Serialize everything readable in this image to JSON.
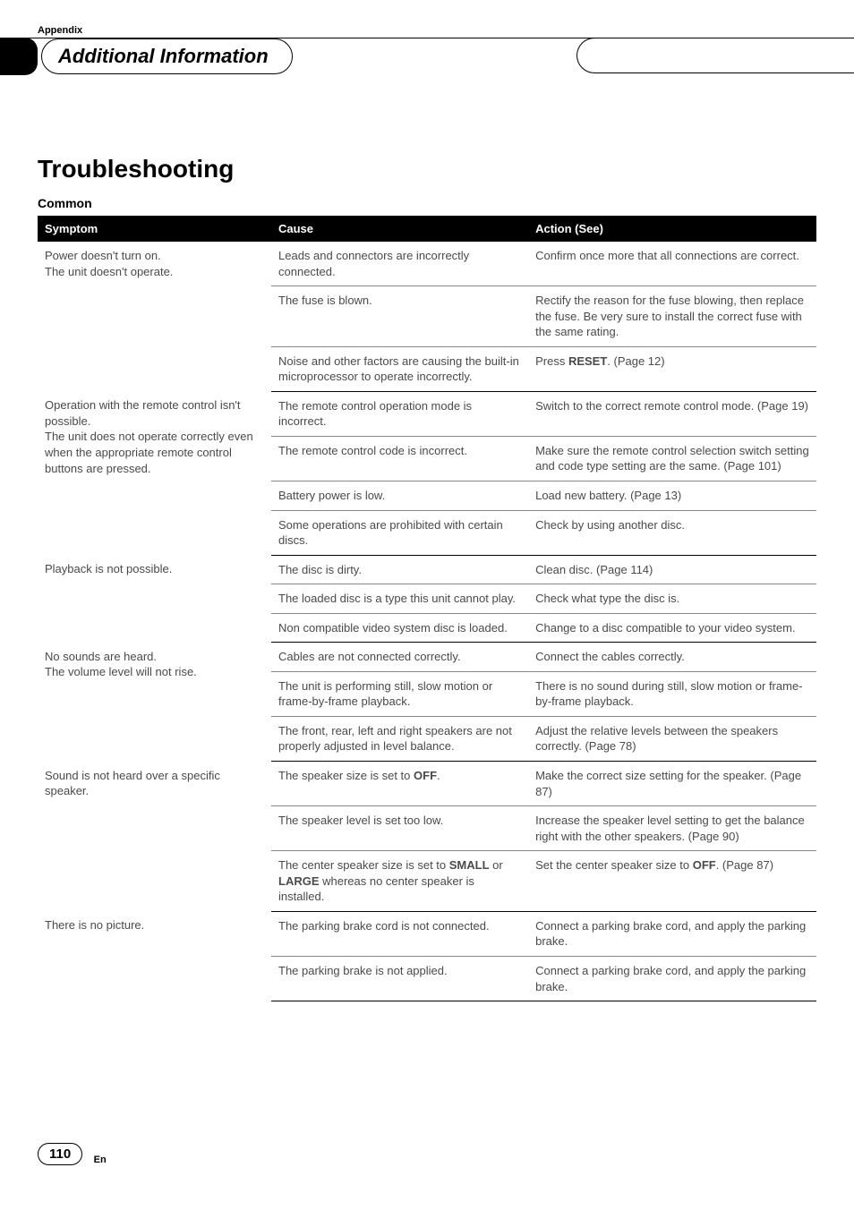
{
  "header": {
    "appendix": "Appendix",
    "section_title": "Additional Information"
  },
  "main": {
    "heading": "Troubleshooting",
    "subheading": "Common",
    "columns": {
      "c1": "Symptom",
      "c2": "Cause",
      "c3": "Action (See)"
    },
    "groups": [
      {
        "symptom": "Power doesn't turn on.\nThe unit doesn't operate.",
        "rows": [
          {
            "cause": "Leads and connectors are incorrectly connected.",
            "action": "Confirm once more that all connections are correct."
          },
          {
            "cause": "The fuse is blown.",
            "action": "Rectify the reason for the fuse blowing, then replace the fuse. Be very sure to install the correct fuse with the same rating."
          },
          {
            "cause": "Noise and other factors are causing the built-in microprocessor to operate incorrectly.",
            "action_pre": "Press ",
            "action_bold": "RESET",
            "action_post": ". (Page 12)"
          }
        ]
      },
      {
        "symptom": "Operation with the remote control isn't possible.\nThe unit does not operate correctly even when the appropriate remote control buttons are pressed.",
        "rows": [
          {
            "cause": "The remote control operation mode is incorrect.",
            "action": "Switch to the correct remote control mode. (Page 19)"
          },
          {
            "cause": "The remote control code is incorrect.",
            "action": "Make sure the remote control selection switch setting and code type setting are the same. (Page 101)"
          },
          {
            "cause": "Battery power is low.",
            "action": "Load new battery. (Page 13)"
          },
          {
            "cause": "Some operations are prohibited with certain discs.",
            "action": "Check by using another disc."
          }
        ]
      },
      {
        "symptom": "Playback is not possible.",
        "rows": [
          {
            "cause": "The disc is dirty.",
            "action": "Clean disc. (Page 114)"
          },
          {
            "cause": "The loaded disc is a type this unit cannot play.",
            "action": "Check what type the disc is."
          },
          {
            "cause": "Non compatible video system disc is loaded.",
            "action": "Change to a disc compatible to your video system."
          }
        ]
      },
      {
        "symptom": "No sounds are heard.\nThe volume level will not rise.",
        "rows": [
          {
            "cause": "Cables are not connected correctly.",
            "action": "Connect the cables correctly."
          },
          {
            "cause": "The unit is performing still, slow motion or frame-by-frame playback.",
            "action": "There is no sound during still, slow motion or frame-by-frame playback."
          },
          {
            "cause": "The front, rear, left and right speakers are not properly adjusted in level balance.",
            "action": "Adjust the relative levels between the speakers correctly. (Page 78)"
          }
        ]
      },
      {
        "symptom": "Sound is not heard over a specific speaker.",
        "rows": [
          {
            "cause_pre": "The speaker size is set to ",
            "cause_bold": "OFF",
            "cause_post": ".",
            "action": "Make the correct size setting for the speaker. (Page 87)"
          },
          {
            "cause": "The speaker level is set too low.",
            "action": "Increase the speaker level setting to get the balance right with the other speakers. (Page 90)"
          },
          {
            "cause_pre": "The center speaker size is set to ",
            "cause_bold": "SMALL",
            "cause_mid": " or ",
            "cause_bold2": "LARGE",
            "cause_post": " whereas no center speaker is installed.",
            "action_pre": "Set the center speaker size to ",
            "action_bold": "OFF",
            "action_post": ". (Page 87)"
          }
        ]
      },
      {
        "symptom": "There is no picture.",
        "rows": [
          {
            "cause": "The parking brake cord is not connected.",
            "action": "Connect a parking brake cord, and apply the parking brake."
          },
          {
            "cause": "The parking brake is not applied.",
            "action": "Connect a parking brake cord, and apply the parking brake."
          }
        ]
      }
    ]
  },
  "footer": {
    "page": "110",
    "lang": "En"
  }
}
